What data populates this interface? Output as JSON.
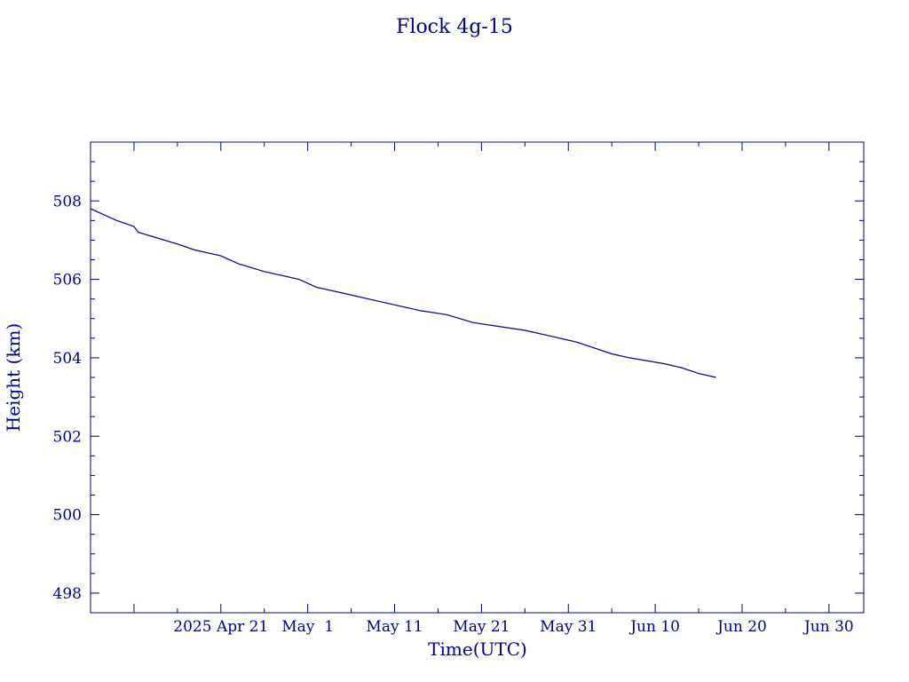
{
  "chart_data": {
    "type": "line",
    "title": "Flock 4g-15",
    "xlabel": "Time(UTC)",
    "ylabel": "Height (km)",
    "xlim": [
      "2025-04-06",
      "2025-07-04"
    ],
    "ylim": [
      497.5,
      509.5
    ],
    "x_tick_labels": [
      {
        "date": "2025-04-21",
        "label": "2025 Apr 21"
      },
      {
        "date": "2025-05-01",
        "label": "May  1"
      },
      {
        "date": "2025-05-11",
        "label": "May 11"
      },
      {
        "date": "2025-05-21",
        "label": "May 21"
      },
      {
        "date": "2025-05-31",
        "label": "May 31"
      },
      {
        "date": "2025-06-10",
        "label": "Jun 10"
      },
      {
        "date": "2025-06-20",
        "label": "Jun 20"
      },
      {
        "date": "2025-06-30",
        "label": "Jun 30"
      }
    ],
    "y_tick_labels": [
      "498",
      "500",
      "502",
      "504",
      "506",
      "508"
    ],
    "grid": false,
    "series": [
      {
        "color": "#00008b",
        "points": [
          {
            "x": "2025-04-06",
            "y": 507.8
          },
          {
            "x": "2025-04-09",
            "y": 507.5
          },
          {
            "x": "2025-04-11",
            "y": 507.35
          },
          {
            "x": "2025-04-11T12:00",
            "y": 507.2
          },
          {
            "x": "2025-04-13",
            "y": 507.1
          },
          {
            "x": "2025-04-16",
            "y": 506.9
          },
          {
            "x": "2025-04-18",
            "y": 506.75
          },
          {
            "x": "2025-04-21",
            "y": 506.6
          },
          {
            "x": "2025-04-23",
            "y": 506.4
          },
          {
            "x": "2025-04-26",
            "y": 506.2
          },
          {
            "x": "2025-04-30",
            "y": 506.0
          },
          {
            "x": "2025-05-02",
            "y": 505.8
          },
          {
            "x": "2025-05-05",
            "y": 505.65
          },
          {
            "x": "2025-05-08",
            "y": 505.5
          },
          {
            "x": "2025-05-11",
            "y": 505.35
          },
          {
            "x": "2025-05-14",
            "y": 505.2
          },
          {
            "x": "2025-05-17",
            "y": 505.1
          },
          {
            "x": "2025-05-20",
            "y": 504.9
          },
          {
            "x": "2025-05-23",
            "y": 504.8
          },
          {
            "x": "2025-05-26",
            "y": 504.7
          },
          {
            "x": "2025-05-29",
            "y": 504.55
          },
          {
            "x": "2025-06-01",
            "y": 504.4
          },
          {
            "x": "2025-06-03",
            "y": 504.25
          },
          {
            "x": "2025-06-05",
            "y": 504.1
          },
          {
            "x": "2025-06-07",
            "y": 504.0
          },
          {
            "x": "2025-06-11",
            "y": 503.85
          },
          {
            "x": "2025-06-13",
            "y": 503.75
          },
          {
            "x": "2025-06-15",
            "y": 503.6
          },
          {
            "x": "2025-06-17",
            "y": 503.5
          }
        ]
      }
    ]
  }
}
